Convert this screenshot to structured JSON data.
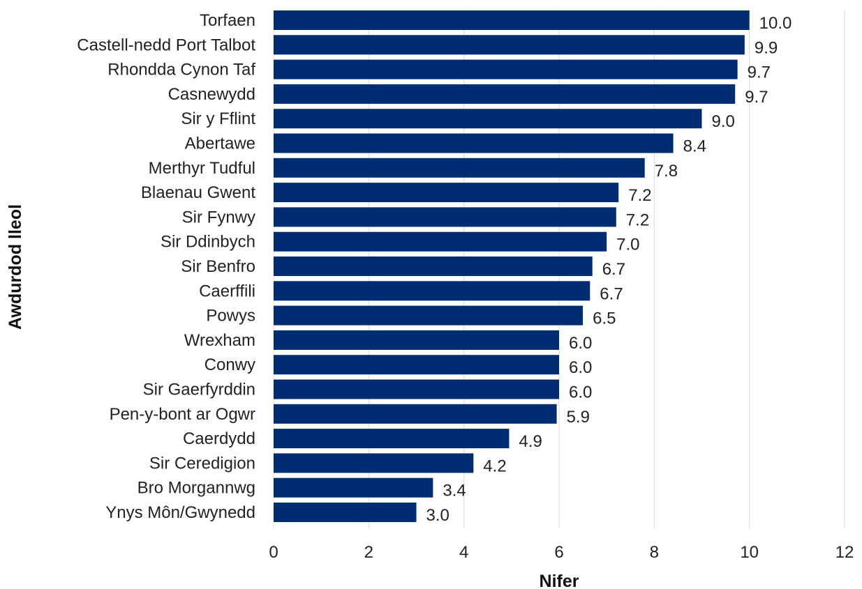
{
  "chart_data": {
    "type": "bar",
    "orientation": "horizontal",
    "title": "",
    "xlabel": "Nifer",
    "ylabel": "Awdurdod lleol",
    "xlim": [
      0,
      12
    ],
    "xticks": [
      0,
      2,
      4,
      6,
      8,
      10,
      12
    ],
    "grid": "vertical",
    "bar_color": "#002d72",
    "categories": [
      "Torfaen",
      "Castell-nedd Port Talbot",
      "Rhondda Cynon Taf",
      "Casnewydd",
      "Sir y Fflint",
      "Abertawe",
      "Merthyr Tudful",
      "Blaenau Gwent",
      "Sir Fynwy",
      "Sir Ddinbych",
      "Sir Benfro",
      "Caerffili",
      "Powys",
      "Wrexham",
      "Conwy",
      "Sir Gaerfyrddin",
      "Pen-y-bont ar Ogwr",
      "Caerdydd",
      "Sir Ceredigion",
      "Bro Morgannwg",
      "Ynys Môn/Gwynedd"
    ],
    "values": [
      10.0,
      9.9,
      9.75,
      9.7,
      9.0,
      8.4,
      7.8,
      7.25,
      7.2,
      7.0,
      6.7,
      6.65,
      6.5,
      6.0,
      6.0,
      6.0,
      5.95,
      4.95,
      4.2,
      3.35,
      3.0
    ],
    "value_labels": [
      "10.0",
      "9.9",
      "9.7",
      "9.7",
      "9.0",
      "8.4",
      "7.8",
      "7.2",
      "7.2",
      "7.0",
      "6.7",
      "6.7",
      "6.5",
      "6.0",
      "6.0",
      "6.0",
      "5.9",
      "4.9",
      "4.2",
      "3.4",
      "3.0"
    ]
  }
}
